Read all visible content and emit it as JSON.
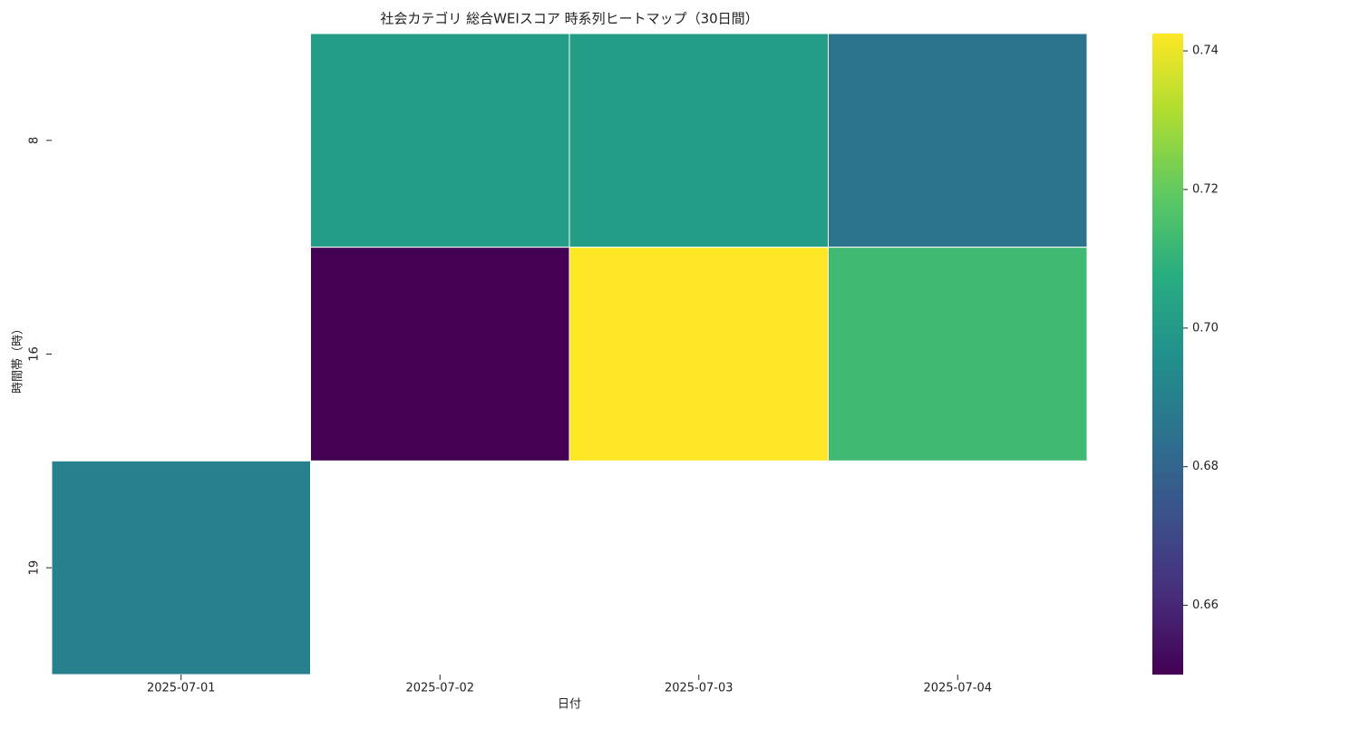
{
  "chart_data": {
    "type": "heatmap",
    "title": "社会カテゴリ 総合WEIスコア 時系列ヒートマップ（30日間）",
    "x_label": "日付",
    "y_label": "時間帯（時）",
    "x": [
      "2025-07-01",
      "2025-07-02",
      "2025-07-03",
      "2025-07-04"
    ],
    "y": [
      "8",
      "16",
      "19"
    ],
    "values": [
      [
        null,
        0.701,
        0.701,
        0.685
      ],
      [
        null,
        0.65,
        0.7425,
        0.713
      ],
      [
        0.69,
        null,
        null,
        null
      ]
    ],
    "colormap": "viridis",
    "zlim": [
      0.65,
      0.7425
    ],
    "zticks": [
      0.66,
      0.68,
      {
        "value": 0.7,
        "label": "0.70"
      },
      0.72,
      0.74
    ]
  }
}
